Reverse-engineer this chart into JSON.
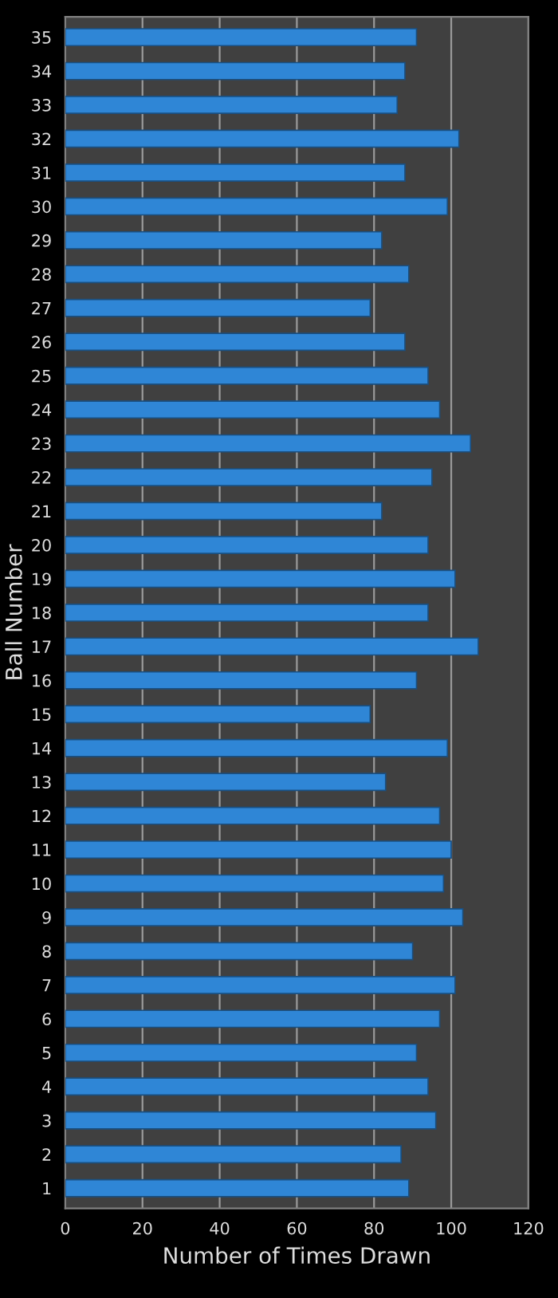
{
  "chart_data": {
    "type": "bar",
    "orientation": "horizontal",
    "xlabel": "Number of Times Drawn",
    "ylabel": "Ball Number",
    "categories": [
      "35",
      "34",
      "33",
      "32",
      "31",
      "30",
      "29",
      "28",
      "27",
      "26",
      "25",
      "24",
      "23",
      "22",
      "21",
      "20",
      "19",
      "18",
      "17",
      "16",
      "15",
      "14",
      "13",
      "12",
      "11",
      "10",
      "9",
      "8",
      "7",
      "6",
      "5",
      "4",
      "3",
      "2",
      "1"
    ],
    "values": [
      91,
      88,
      86,
      102,
      88,
      99,
      82,
      89,
      79,
      88,
      94,
      97,
      105,
      95,
      82,
      94,
      101,
      94,
      107,
      91,
      79,
      99,
      83,
      97,
      100,
      98,
      103,
      90,
      101,
      97,
      91,
      94,
      96,
      87,
      89
    ],
    "color": "#2f86d6",
    "xlim": [
      0,
      120
    ],
    "xticks": [
      0,
      20,
      40,
      60,
      80,
      100,
      120
    ],
    "grid": "x"
  }
}
